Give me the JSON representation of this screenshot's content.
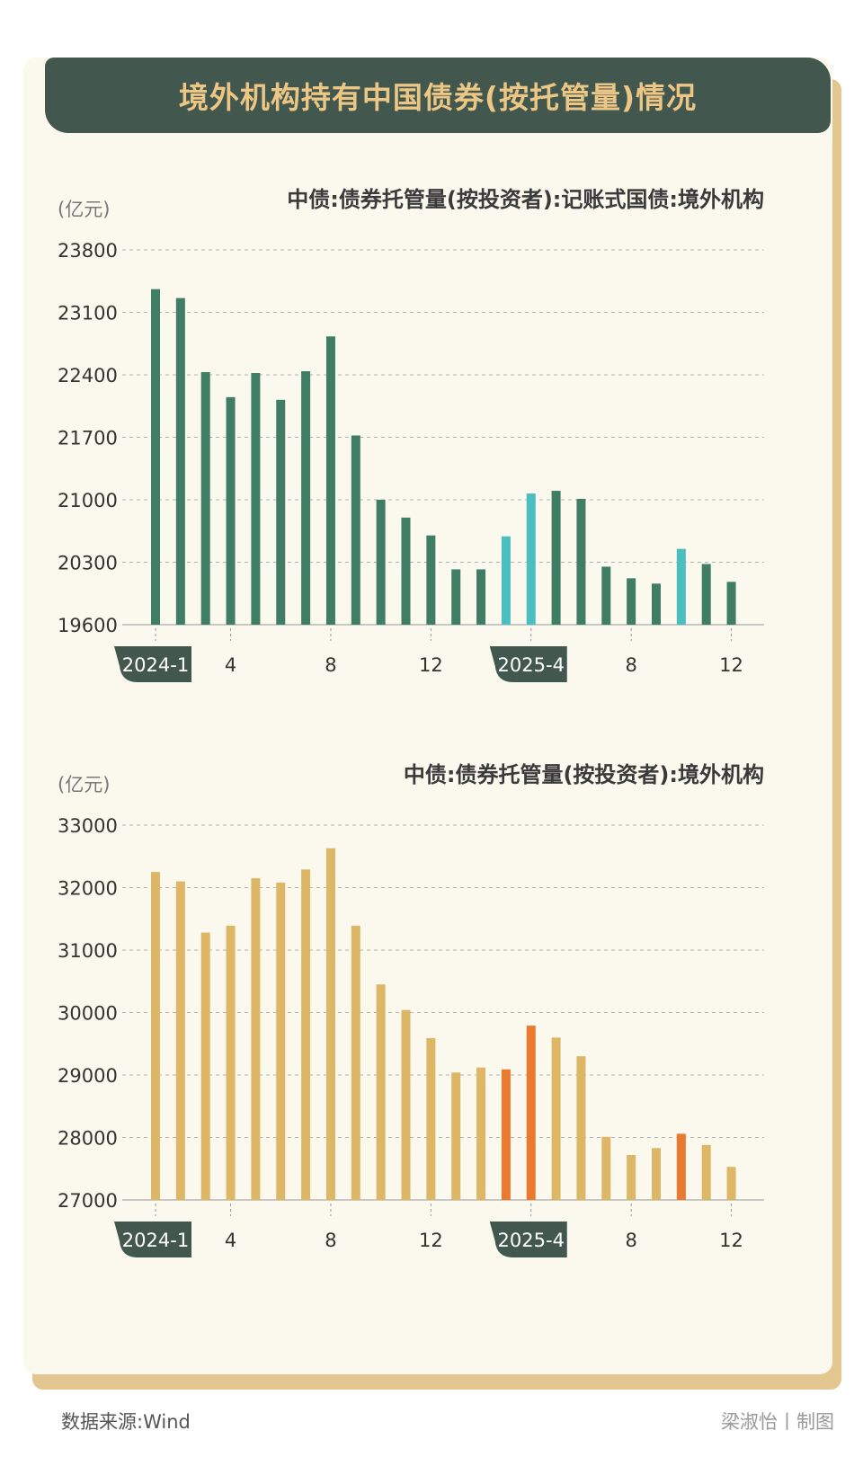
{
  "title": "境外机构持有中国债券(按托管量)情况",
  "footer": {
    "source": "数据来源:Wind",
    "credit": "梁淑怡丨制图"
  },
  "colors": {
    "title_bg": "#42574d",
    "title_text": "#ecc685",
    "chart1_bar": "#3f7d64",
    "chart1_highlight": "#4bbfbf",
    "chart2_bar": "#ddb766",
    "chart2_highlight": "#e97a2f",
    "tag_bg": "#42574d"
  },
  "chart_data": [
    {
      "type": "bar",
      "title": "中债:债券托管量(按投资者):记账式国债:境外机构",
      "unit": "(亿元)",
      "ylim": [
        19600,
        23800
      ],
      "yticks": [
        19600,
        20300,
        21000,
        21700,
        22400,
        23100,
        23800
      ],
      "x_tick_labels": [
        {
          "index": 0,
          "label": "2024-1",
          "tag": true
        },
        {
          "index": 3,
          "label": "4"
        },
        {
          "index": 7,
          "label": "8"
        },
        {
          "index": 11,
          "label": "12"
        },
        {
          "index": 15,
          "label": "2025-4",
          "tag": true
        },
        {
          "index": 19,
          "label": "8"
        },
        {
          "index": 23,
          "label": "12"
        }
      ],
      "categories": [
        "2024-1",
        "2024-2",
        "2024-3",
        "2024-4",
        "2024-5",
        "2024-6",
        "2024-7",
        "2024-8",
        "2024-9",
        "2024-10",
        "2024-11",
        "2024-12",
        "2025-1",
        "2025-2",
        "2025-3",
        "2025-4",
        "2025-5",
        "2025-6",
        "2025-7",
        "2025-8",
        "2025-9",
        "2025-10",
        "2025-11",
        "2025-12"
      ],
      "values": [
        23360,
        23260,
        22430,
        22150,
        22420,
        22120,
        22440,
        22830,
        21720,
        21000,
        20800,
        20600,
        20220,
        20220,
        20590,
        21070,
        21100,
        21010,
        20250,
        20120,
        20060,
        20450,
        20280,
        20080
      ],
      "highlight_indices": [
        14,
        15,
        21
      ],
      "grid": true
    },
    {
      "type": "bar",
      "title": "中债:债券托管量(按投资者):境外机构",
      "unit": "(亿元)",
      "ylim": [
        27000,
        33000
      ],
      "yticks": [
        27000,
        28000,
        29000,
        30000,
        31000,
        32000,
        33000
      ],
      "x_tick_labels": [
        {
          "index": 0,
          "label": "2024-1",
          "tag": true
        },
        {
          "index": 3,
          "label": "4"
        },
        {
          "index": 7,
          "label": "8"
        },
        {
          "index": 11,
          "label": "12"
        },
        {
          "index": 15,
          "label": "2025-4",
          "tag": true
        },
        {
          "index": 19,
          "label": "8"
        },
        {
          "index": 23,
          "label": "12"
        }
      ],
      "categories": [
        "2024-1",
        "2024-2",
        "2024-3",
        "2024-4",
        "2024-5",
        "2024-6",
        "2024-7",
        "2024-8",
        "2024-9",
        "2024-10",
        "2024-11",
        "2024-12",
        "2025-1",
        "2025-2",
        "2025-3",
        "2025-4",
        "2025-5",
        "2025-6",
        "2025-7",
        "2025-8",
        "2025-9",
        "2025-10",
        "2025-11",
        "2025-12"
      ],
      "values": [
        32250,
        32100,
        31280,
        31390,
        32150,
        32080,
        32290,
        32630,
        31390,
        30450,
        30040,
        29590,
        29040,
        29120,
        29090,
        29790,
        29600,
        29300,
        28010,
        27720,
        27830,
        28060,
        27880,
        27530
      ],
      "highlight_indices": [
        14,
        15,
        21
      ],
      "grid": true
    }
  ]
}
